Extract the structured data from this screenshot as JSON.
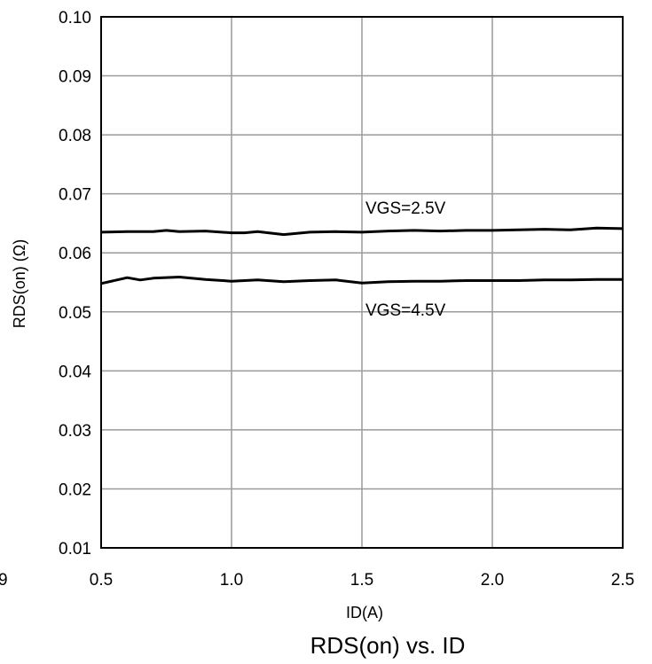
{
  "chart_data": {
    "type": "line",
    "title": "RDS(on) vs. ID",
    "xlabel": "ID(A)",
    "ylabel": "RDS(on) (Ω)",
    "xlim": [
      0.5,
      2.5
    ],
    "ylim": [
      0.01,
      0.1
    ],
    "x_ticks": [
      "0.5",
      "1.0",
      "1.5",
      "2.0",
      "2.5"
    ],
    "y_ticks": [
      "0.10",
      "0.09",
      "0.08",
      "0.07",
      "0.06",
      "0.05",
      "0.04",
      "0.03",
      "0.02",
      "0.01"
    ],
    "x_tick_values": [
      0.5,
      1.0,
      1.5,
      2.0,
      2.5
    ],
    "y_tick_values": [
      0.1,
      0.09,
      0.08,
      0.07,
      0.06,
      0.05,
      0.04,
      0.03,
      0.02,
      0.01
    ],
    "grid": true,
    "partial_left_label": "9",
    "series": [
      {
        "name": "VGS=2.5V",
        "x": [
          0.5,
          0.6,
          0.7,
          0.75,
          0.8,
          0.9,
          1.0,
          1.05,
          1.1,
          1.2,
          1.3,
          1.4,
          1.5,
          1.6,
          1.7,
          1.8,
          1.9,
          2.0,
          2.1,
          2.2,
          2.3,
          2.4,
          2.5
        ],
        "y": [
          0.0635,
          0.0636,
          0.0636,
          0.0638,
          0.0636,
          0.0637,
          0.0634,
          0.0634,
          0.0636,
          0.0631,
          0.0635,
          0.0636,
          0.0635,
          0.0637,
          0.0638,
          0.0637,
          0.0638,
          0.0638,
          0.0639,
          0.064,
          0.0639,
          0.0642,
          0.0641
        ]
      },
      {
        "name": "VGS=4.5V",
        "x": [
          0.5,
          0.6,
          0.65,
          0.7,
          0.8,
          0.9,
          1.0,
          1.1,
          1.2,
          1.3,
          1.4,
          1.5,
          1.6,
          1.7,
          1.8,
          1.9,
          2.0,
          2.1,
          2.2,
          2.3,
          2.4,
          2.5
        ],
        "y": [
          0.0548,
          0.0558,
          0.0554,
          0.0557,
          0.0559,
          0.0555,
          0.0552,
          0.0554,
          0.0551,
          0.0553,
          0.0554,
          0.0549,
          0.0551,
          0.0552,
          0.0552,
          0.0553,
          0.0553,
          0.0553,
          0.0554,
          0.0554,
          0.0555,
          0.0555
        ]
      }
    ]
  }
}
